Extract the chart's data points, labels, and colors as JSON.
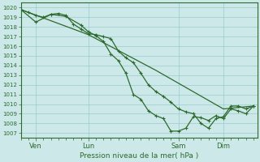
{
  "title": "Pression niveau de la mer( hPa )",
  "bg_color": "#cce8e8",
  "grid_color": "#99cccc",
  "line_color": "#2d6a2d",
  "ylim": [
    1006.5,
    1020.5
  ],
  "yticks": [
    1007,
    1008,
    1009,
    1010,
    1011,
    1012,
    1013,
    1014,
    1015,
    1016,
    1017,
    1018,
    1019,
    1020
  ],
  "xtick_labels": [
    "Ven",
    "Lun",
    "Sam",
    "Dim"
  ],
  "xtick_positions": [
    8,
    36,
    84,
    108
  ],
  "total_hours": 126,
  "series_detail": {
    "x": [
      0,
      4,
      8,
      12,
      16,
      20,
      24,
      28,
      32,
      36,
      40,
      44,
      48,
      52,
      56,
      60,
      64,
      68,
      72,
      76,
      80,
      84,
      88,
      92,
      96,
      100,
      104,
      108,
      112,
      116,
      120,
      124
    ],
    "y": [
      1019.8,
      1019.5,
      1019.2,
      1019.0,
      1019.3,
      1019.4,
      1019.2,
      1018.3,
      1017.8,
      1017.3,
      1017.2,
      1017.0,
      1016.8,
      1015.5,
      1014.8,
      1014.3,
      1013.2,
      1012.0,
      1011.3,
      1010.8,
      1010.2,
      1009.5,
      1009.2,
      1009.0,
      1008.0,
      1007.5,
      1008.5,
      1008.7,
      1009.8,
      1009.8,
      1009.5,
      1009.8
    ]
  },
  "series_medium": {
    "x": [
      0,
      8,
      16,
      24,
      32,
      36,
      40,
      44,
      48,
      52,
      56,
      60,
      64,
      68,
      72,
      76,
      80,
      84,
      88,
      92,
      96,
      100,
      104,
      108,
      112,
      116,
      120,
      124
    ],
    "y": [
      1019.8,
      1018.5,
      1019.3,
      1019.1,
      1018.2,
      1017.5,
      1017.1,
      1016.5,
      1015.2,
      1014.5,
      1013.2,
      1011.0,
      1010.5,
      1009.3,
      1008.8,
      1008.5,
      1007.2,
      1007.2,
      1007.5,
      1008.7,
      1008.6,
      1008.3,
      1008.8,
      1008.5,
      1009.5,
      1009.3,
      1009.0,
      1009.8
    ]
  },
  "series_straight": {
    "x": [
      0,
      36,
      72,
      108,
      124
    ],
    "y": [
      1019.8,
      1017.2,
      1013.5,
      1009.5,
      1009.8
    ]
  }
}
